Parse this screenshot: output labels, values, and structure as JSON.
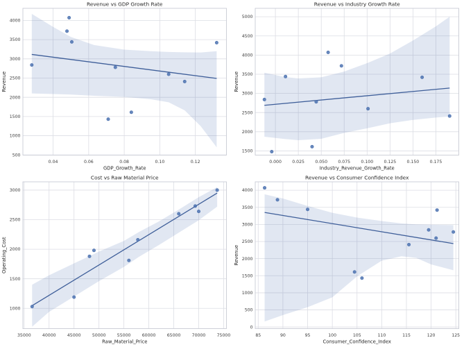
{
  "figure": {
    "background": "#ffffff",
    "accent": "#4c72b0",
    "trend_color": "#3e5e99",
    "band_opacity": 0.17,
    "point_opacity": 0.85,
    "grid_color": "#dcdde4",
    "spine_color": "#c9cbd4",
    "text_color": "#262626",
    "tick_text_color": "#3d3d3d"
  },
  "chart_data": [
    {
      "type": "scatter",
      "title": "Revenue vs GDP Growth Rate",
      "xlabel": "GDP_Growth_Rate",
      "ylabel": "Revenue",
      "x": [
        0.028,
        0.0478,
        0.049,
        0.0505,
        0.071,
        0.075,
        0.084,
        0.105,
        0.114,
        0.132
      ],
      "y": [
        2840,
        3720,
        4070,
        3440,
        1430,
        2780,
        1610,
        2600,
        2410,
        3420
      ],
      "trend": {
        "x": [
          0.028,
          0.132
        ],
        "y": [
          3115,
          2490
        ]
      },
      "band": {
        "x": [
          0.028,
          0.04,
          0.05,
          0.063,
          0.08,
          0.095,
          0.105,
          0.114,
          0.123,
          0.132
        ],
        "upper": [
          4170,
          3830,
          3570,
          3360,
          3240,
          3200,
          3180,
          3170,
          3165,
          3200
        ],
        "lower": [
          2100,
          2085,
          2070,
          2040,
          2010,
          1950,
          1870,
          1660,
          1250,
          700
        ]
      },
      "xlim": [
        0.023,
        0.1375
      ],
      "ylim": [
        496,
        4314
      ],
      "xticks": [
        0.04,
        0.06,
        0.08,
        0.1,
        0.12
      ],
      "xtick_labels": [
        "0.04",
        "0.06",
        "0.08",
        "0.10",
        "0.12"
      ],
      "yticks": [
        500,
        1000,
        1500,
        2000,
        2500,
        3000,
        3500,
        4000
      ],
      "ytick_labels": [
        "500",
        "1000",
        "1500",
        "2000",
        "2500",
        "3000",
        "3500",
        "4000"
      ],
      "grid": true,
      "legend": "none"
    },
    {
      "type": "scatter",
      "title": "Revenue vs Industry Growth Rate",
      "xlabel": "Industry_Revenue_Growth_Rate",
      "ylabel": "Revenue",
      "x": [
        -0.012,
        -0.004,
        0.011,
        0.04,
        0.0445,
        0.0575,
        0.072,
        0.101,
        0.16,
        0.19
      ],
      "y": [
        2840,
        1480,
        3440,
        1610,
        2780,
        4070,
        3720,
        2600,
        3420,
        2410
      ],
      "trend": {
        "x": [
          -0.012,
          0.19
        ],
        "y": [
          2690,
          3140
        ]
      },
      "band": {
        "x": [
          -0.012,
          0.01,
          0.025,
          0.05,
          0.075,
          0.1,
          0.125,
          0.15,
          0.175,
          0.19
        ],
        "upper": [
          3540,
          3430,
          3390,
          3420,
          3570,
          3790,
          4040,
          4380,
          4750,
          5000
        ],
        "lower": [
          1870,
          1810,
          1780,
          1815,
          1970,
          2090,
          2220,
          2310,
          2370,
          2400
        ]
      },
      "xlim": [
        -0.022,
        0.2
      ],
      "ylim": [
        1390,
        5220
      ],
      "xticks": [
        0.0,
        0.025,
        0.05,
        0.075,
        0.1,
        0.125,
        0.15,
        0.175
      ],
      "xtick_labels": [
        "0.000",
        "0.025",
        "0.050",
        "0.075",
        "0.100",
        "0.125",
        "0.150",
        "0.175"
      ],
      "yticks": [
        1500,
        2000,
        2500,
        3000,
        3500,
        4000,
        4500,
        5000
      ],
      "ytick_labels": [
        "1500",
        "2000",
        "2500",
        "3000",
        "3500",
        "4000",
        "4500",
        "5000"
      ],
      "grid": true,
      "legend": "none"
    },
    {
      "type": "scatter",
      "title": "Cost vs Raw Material Price",
      "xlabel": "Raw_Material_Price",
      "ylabel": "Operating_Cost",
      "x": [
        36600,
        45000,
        48100,
        49000,
        56000,
        57800,
        66000,
        69300,
        70000,
        73700
      ],
      "y": [
        1030,
        1190,
        1880,
        1980,
        1810,
        2160,
        2600,
        2730,
        2640,
        3000
      ],
      "trend": {
        "x": [
          36600,
          73700
        ],
        "y": [
          1045,
          2950
        ]
      },
      "band": {
        "x": [
          36600,
          40000,
          45000,
          50000,
          55000,
          58000,
          62000,
          66000,
          70000,
          73700
        ],
        "upper": [
          1400,
          1560,
          1760,
          1960,
          2140,
          2290,
          2470,
          2670,
          2880,
          3050
        ],
        "lower": [
          690,
          940,
          1200,
          1460,
          1700,
          1870,
          2070,
          2280,
          2490,
          2720
        ]
      },
      "xlim": [
        34750,
        75560
      ],
      "ylim": [
        657,
        3140
      ],
      "xticks": [
        35000,
        40000,
        45000,
        50000,
        55000,
        60000,
        65000,
        70000,
        75000
      ],
      "xtick_labels": [
        "35000",
        "40000",
        "45000",
        "50000",
        "55000",
        "60000",
        "65000",
        "70000",
        "75000"
      ],
      "yticks": [
        1000,
        1500,
        2000,
        2500,
        3000
      ],
      "ytick_labels": [
        "1000",
        "1500",
        "2000",
        "2500",
        "3000"
      ],
      "grid": true,
      "legend": "none"
    },
    {
      "type": "scatter",
      "title": "Revenue vs Consumer Confidence Index",
      "xlabel": "Consumer_Confidence_Index",
      "ylabel": "Revenue",
      "x": [
        86.3,
        88.9,
        95.0,
        104.5,
        106.0,
        115.5,
        119.5,
        121.0,
        121.2,
        124.5
      ],
      "y": [
        4070,
        3720,
        3440,
        1610,
        1430,
        2410,
        2840,
        2600,
        3420,
        2780
      ],
      "trend": {
        "x": [
          86.3,
          124.5
        ],
        "y": [
          3350,
          2440
        ]
      },
      "band": {
        "x": [
          86.3,
          90,
          95,
          100,
          105,
          110,
          114,
          117,
          120,
          124.5
        ],
        "upper": [
          3880,
          3760,
          3540,
          3340,
          3200,
          3100,
          3030,
          3000,
          2990,
          2980
        ],
        "lower": [
          160,
          350,
          580,
          870,
          1480,
          1940,
          2070,
          2020,
          1830,
          1660
        ]
      },
      "xlim": [
        84.4,
        125.6
      ],
      "ylim": [
        -47,
        4246
      ],
      "xticks": [
        85,
        90,
        95,
        100,
        105,
        110,
        115,
        120,
        125
      ],
      "xtick_labels": [
        "85",
        "90",
        "95",
        "100",
        "105",
        "110",
        "115",
        "120",
        "125"
      ],
      "yticks": [
        0,
        500,
        1000,
        1500,
        2000,
        2500,
        3000,
        3500,
        4000
      ],
      "ytick_labels": [
        "0",
        "500",
        "1000",
        "1500",
        "2000",
        "2500",
        "3000",
        "3500",
        "4000"
      ],
      "grid": true,
      "legend": "none"
    }
  ]
}
